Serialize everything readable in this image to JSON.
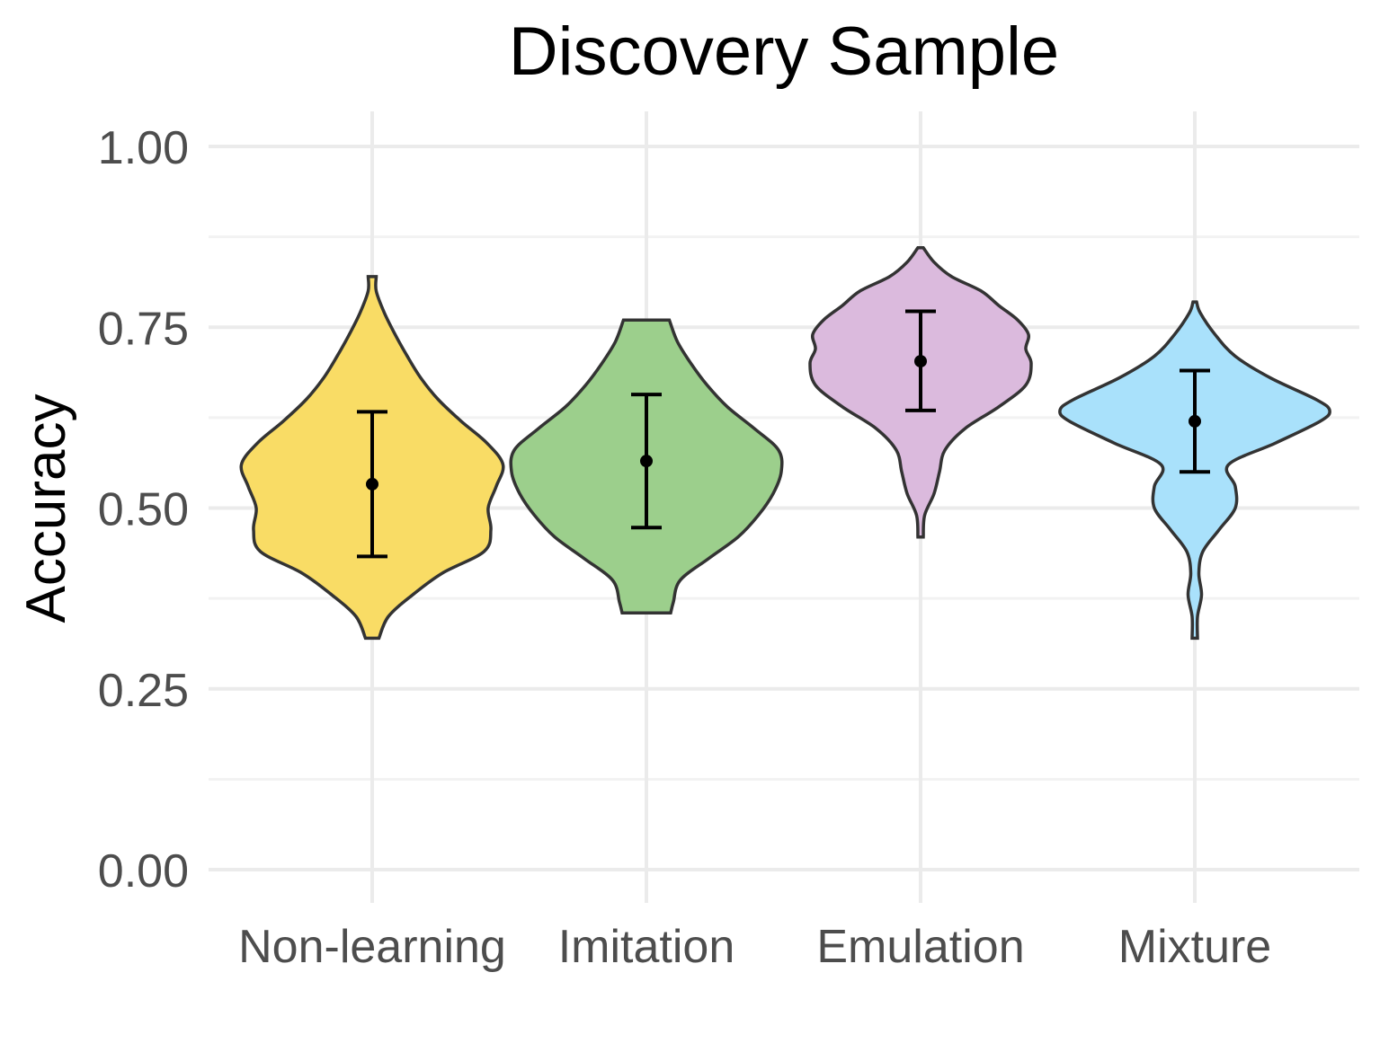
{
  "chart_data": {
    "type": "violin",
    "title": "Discovery Sample",
    "xlabel": "",
    "ylabel": "Accuracy",
    "ylim": [
      0,
      1
    ],
    "y_ticks": [
      "0.00",
      "0.25",
      "0.50",
      "0.75",
      "1.00"
    ],
    "y_tick_values": [
      0,
      0.25,
      0.5,
      0.75,
      1.0
    ],
    "grid": true,
    "legend": "none",
    "categories": [
      "Non-learning",
      "Imitation",
      "Emulation",
      "Mixture"
    ],
    "series": [
      {
        "category": "Non-learning",
        "color": "#f9dc65",
        "mean": 0.533,
        "error_low": 0.433,
        "error_high": 0.633,
        "min": 0.32,
        "max": 0.82,
        "density": [
          [
            0.32,
            0.05
          ],
          [
            0.35,
            0.12
          ],
          [
            0.38,
            0.3
          ],
          [
            0.41,
            0.52
          ],
          [
            0.44,
            0.83
          ],
          [
            0.47,
            0.88
          ],
          [
            0.5,
            0.86
          ],
          [
            0.53,
            0.92
          ],
          [
            0.56,
            0.97
          ],
          [
            0.59,
            0.85
          ],
          [
            0.62,
            0.66
          ],
          [
            0.65,
            0.49
          ],
          [
            0.68,
            0.36
          ],
          [
            0.71,
            0.26
          ],
          [
            0.74,
            0.17
          ],
          [
            0.77,
            0.09
          ],
          [
            0.8,
            0.03
          ],
          [
            0.82,
            0.03
          ]
        ]
      },
      {
        "category": "Imitation",
        "color": "#9ccf8c",
        "mean": 0.565,
        "error_low": 0.473,
        "error_high": 0.657,
        "min": 0.355,
        "max": 0.76,
        "density": [
          [
            0.355,
            0.18
          ],
          [
            0.37,
            0.2
          ],
          [
            0.4,
            0.25
          ],
          [
            0.43,
            0.46
          ],
          [
            0.46,
            0.68
          ],
          [
            0.49,
            0.83
          ],
          [
            0.52,
            0.94
          ],
          [
            0.55,
            1.0
          ],
          [
            0.58,
            0.98
          ],
          [
            0.61,
            0.8
          ],
          [
            0.64,
            0.6
          ],
          [
            0.67,
            0.45
          ],
          [
            0.7,
            0.33
          ],
          [
            0.73,
            0.23
          ],
          [
            0.76,
            0.17
          ]
        ]
      },
      {
        "category": "Emulation",
        "color": "#dbbadd",
        "mean": 0.703,
        "error_low": 0.635,
        "error_high": 0.772,
        "min": 0.46,
        "max": 0.86,
        "density": [
          [
            0.46,
            0.02
          ],
          [
            0.49,
            0.03
          ],
          [
            0.52,
            0.1
          ],
          [
            0.55,
            0.14
          ],
          [
            0.58,
            0.18
          ],
          [
            0.61,
            0.33
          ],
          [
            0.64,
            0.58
          ],
          [
            0.67,
            0.78
          ],
          [
            0.7,
            0.82
          ],
          [
            0.72,
            0.78
          ],
          [
            0.74,
            0.8
          ],
          [
            0.76,
            0.72
          ],
          [
            0.78,
            0.58
          ],
          [
            0.8,
            0.45
          ],
          [
            0.82,
            0.23
          ],
          [
            0.84,
            0.1
          ],
          [
            0.86,
            0.02
          ]
        ]
      },
      {
        "category": "Mixture",
        "color": "#a9e1fb",
        "mean": 0.62,
        "error_low": 0.55,
        "error_high": 0.69,
        "min": 0.32,
        "max": 0.785,
        "density": [
          [
            0.32,
            0.02
          ],
          [
            0.35,
            0.02
          ],
          [
            0.38,
            0.05
          ],
          [
            0.41,
            0.03
          ],
          [
            0.44,
            0.06
          ],
          [
            0.47,
            0.18
          ],
          [
            0.5,
            0.3
          ],
          [
            0.53,
            0.3
          ],
          [
            0.56,
            0.25
          ],
          [
            0.59,
            0.6
          ],
          [
            0.62,
            0.93
          ],
          [
            0.635,
            1.0
          ],
          [
            0.65,
            0.9
          ],
          [
            0.68,
            0.56
          ],
          [
            0.71,
            0.3
          ],
          [
            0.74,
            0.15
          ],
          [
            0.77,
            0.04
          ],
          [
            0.785,
            0.01
          ]
        ]
      }
    ]
  }
}
